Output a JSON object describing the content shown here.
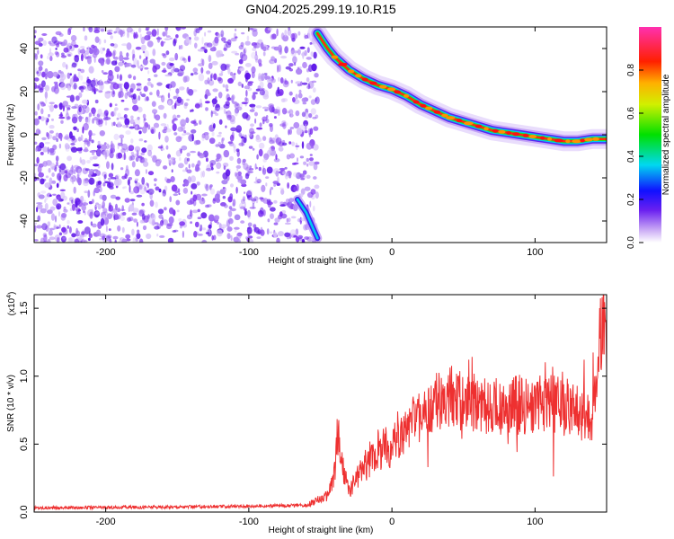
{
  "title": "GN04.2025.299.19.10.R15",
  "chart_data": [
    {
      "type": "heatmap",
      "name": "spectrogram",
      "xlabel": "Height of straight line (km)",
      "ylabel": "Frequency (Hz)",
      "xlim": [
        -250,
        150
      ],
      "ylim": [
        -50,
        50
      ],
      "xticks": [
        -200,
        -100,
        0,
        100
      ],
      "yticks": [
        -40,
        -20,
        0,
        20,
        40
      ],
      "colorbar": {
        "label": "Normalized spectral amplitude",
        "range": [
          0.0,
          1.0
        ],
        "ticks": [
          "0.0",
          "0.2",
          "0.4",
          "0.6",
          "0.8"
        ],
        "colormap": "rainbow (white-violet-blue-cyan-green-yellow-red-pink)"
      },
      "features": {
        "noise_region_x": [
          -250,
          -52
        ],
        "main_trace": {
          "x": [
            -52,
            -45,
            -40,
            -35,
            -30,
            -20,
            -10,
            0,
            10,
            20,
            30,
            40,
            50,
            60,
            70,
            80,
            90,
            100,
            110,
            120,
            130,
            140,
            150
          ],
          "y": [
            47,
            40,
            36,
            33,
            30,
            26,
            23,
            21,
            18,
            14,
            11,
            8,
            6,
            4,
            2,
            1,
            0,
            -1,
            -2,
            -3,
            -3,
            -2,
            -2
          ]
        },
        "aliased_trace": {
          "x": [
            -66,
            -60,
            -56,
            -52
          ],
          "y": [
            -30,
            -36,
            -42,
            -48
          ]
        }
      }
    },
    {
      "type": "line",
      "name": "snr",
      "xlabel": "Height of straight line (km)",
      "ylabel": "SNR (10 * v/v)",
      "multiplier": "(x10",
      "multiplier_exp": "4",
      "multiplier_close": ")",
      "xlim": [
        -250,
        150
      ],
      "ylim": [
        0.0,
        1.6
      ],
      "xticks": [
        -200,
        -100,
        0,
        100
      ],
      "yticks": [
        "0.0",
        "0.5",
        "1.0",
        "1.5"
      ],
      "color": "#ee3030",
      "series_envelope": {
        "x": [
          -250,
          -120,
          -60,
          -45,
          -40,
          -38,
          -35,
          -30,
          -25,
          -20,
          -10,
          0,
          10,
          20,
          30,
          40,
          60,
          80,
          100,
          120,
          140,
          148,
          150
        ],
        "y": [
          0.03,
          0.04,
          0.05,
          0.12,
          0.28,
          0.6,
          0.35,
          0.15,
          0.25,
          0.33,
          0.45,
          0.5,
          0.6,
          0.72,
          0.8,
          0.85,
          0.8,
          0.78,
          0.8,
          0.78,
          0.7,
          1.5,
          1.4
        ]
      }
    }
  ]
}
